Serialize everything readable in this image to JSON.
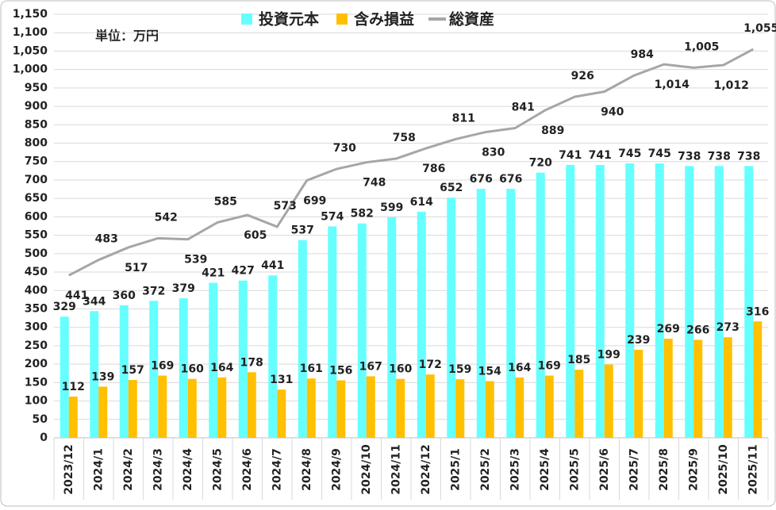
{
  "chart_data": {
    "type": "bar-line",
    "annotation": "単位：万円",
    "categories": [
      "2023/12",
      "2024/1",
      "2024/2",
      "2024/3",
      "2024/4",
      "2024/5",
      "2024/6",
      "2024/7",
      "2024/8",
      "2024/9",
      "2024/10",
      "2024/11",
      "2024/12",
      "2025/1",
      "2025/2",
      "2025/3",
      "2025/4",
      "2025/5",
      "2025/6",
      "2025/7",
      "2025/8",
      "2025/9",
      "2025/10",
      "2025/11"
    ],
    "series": [
      {
        "name": "投資元本",
        "color": "#66ffff",
        "kind": "bar",
        "values": [
          329,
          344,
          360,
          372,
          379,
          421,
          427,
          441,
          537,
          574,
          582,
          599,
          614,
          652,
          676,
          676,
          720,
          741,
          741,
          745,
          745,
          738,
          738,
          738
        ]
      },
      {
        "name": "含み損益",
        "color": "#ffc000",
        "kind": "bar",
        "values": [
          112,
          139,
          157,
          169,
          160,
          164,
          178,
          131,
          161,
          156,
          167,
          160,
          172,
          159,
          154,
          164,
          169,
          185,
          199,
          239,
          269,
          266,
          273,
          316
        ]
      },
      {
        "name": "総資産",
        "color": "#a6a6a6",
        "kind": "line",
        "values": [
          441,
          483,
          517,
          542,
          539,
          585,
          605,
          573,
          699,
          730,
          748,
          758,
          786,
          811,
          830,
          841,
          889,
          926,
          940,
          984,
          1014,
          1005,
          1012,
          1055
        ],
        "value_labels": [
          "441",
          "483",
          "517",
          "542",
          "539",
          "585",
          "605",
          "573",
          "699",
          "730",
          "748",
          "758",
          "786",
          "811",
          "830",
          "841",
          "889",
          "926",
          "940",
          "984",
          "1,014",
          "1,005",
          "1,012",
          "1,055"
        ]
      }
    ],
    "ylim": [
      0,
      1150
    ],
    "yticks": [
      0,
      50,
      100,
      150,
      200,
      250,
      300,
      350,
      400,
      450,
      500,
      550,
      600,
      650,
      700,
      750,
      800,
      850,
      900,
      950,
      {
        "value": 1000,
        "label": "1,000"
      },
      {
        "value": 1050,
        "label": "1,050"
      },
      {
        "value": 1100,
        "label": "1,100"
      },
      {
        "value": 1150,
        "label": "1,150"
      }
    ],
    "grid": true,
    "legend": "top"
  }
}
